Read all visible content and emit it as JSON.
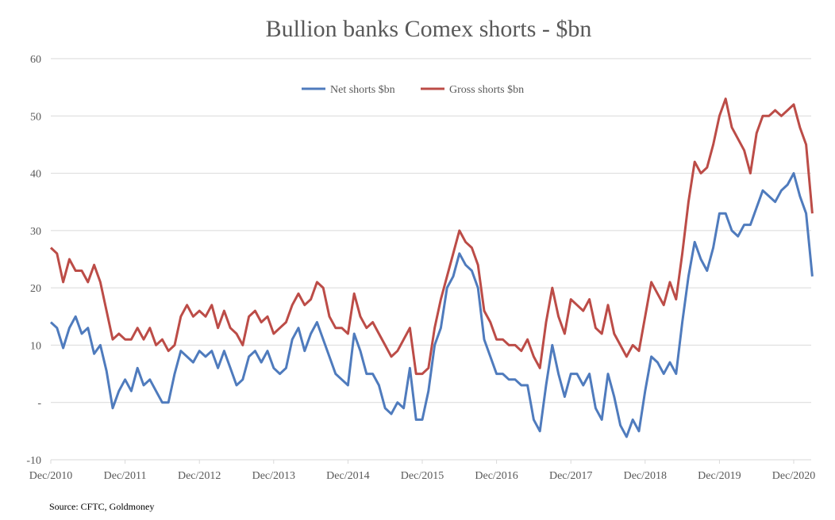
{
  "chart_data": {
    "type": "line",
    "title": "Bullion banks Comex shorts - $bn",
    "xlabel": "",
    "ylabel": "",
    "ylim": [
      -10,
      60
    ],
    "yticks": [
      -10,
      0,
      10,
      20,
      30,
      40,
      50,
      60
    ],
    "ytick_labels": [
      "-10",
      "-",
      "10",
      "20",
      "30",
      "40",
      "50",
      "60"
    ],
    "xtick_labels": [
      "Dec/2010",
      "Dec/2011",
      "Dec/2012",
      "Dec/2013",
      "Dec/2014",
      "Dec/2015",
      "Dec/2016",
      "Dec/2017",
      "Dec/2018",
      "Dec/2019",
      "Dec/2020"
    ],
    "grid": "horizontal",
    "legend_placement": "top-center",
    "source": "Source: CFTC, Goldmoney",
    "start_month": "2010-12",
    "series": [
      {
        "name": "Net shorts $bn",
        "color": "#4f7bbd",
        "values": [
          14,
          13,
          9.5,
          13,
          15,
          12,
          13,
          8.5,
          10,
          5.5,
          -1,
          2,
          4,
          2,
          6,
          3,
          4,
          2,
          0,
          0,
          5,
          9,
          8,
          7,
          9,
          8,
          9,
          6,
          9,
          6,
          3,
          4,
          8,
          9,
          7,
          9,
          6,
          5,
          6,
          11,
          13,
          9,
          12,
          14,
          11,
          8,
          5,
          4,
          3,
          12,
          9,
          5,
          5,
          3,
          -1,
          -2,
          0,
          -1,
          6,
          -3,
          -3,
          2,
          10,
          13,
          20,
          22,
          26,
          24,
          23,
          20,
          11,
          8,
          5,
          5,
          4,
          4,
          3,
          3,
          -3,
          -5,
          3,
          10,
          5,
          1,
          5,
          5,
          3,
          5,
          -1,
          -3,
          5,
          1,
          -4,
          -6,
          -3,
          -5,
          2,
          8,
          7,
          5,
          7,
          5,
          14,
          22,
          28,
          25,
          23,
          27,
          33,
          33,
          30,
          29,
          31,
          31,
          34,
          37,
          36,
          35,
          37,
          38,
          40,
          36,
          33,
          22
        ]
      },
      {
        "name": "Gross shorts $bn",
        "color": "#bc4c47",
        "values": [
          27,
          26,
          21,
          25,
          23,
          23,
          21,
          24,
          21,
          16,
          11,
          12,
          11,
          11,
          13,
          11,
          13,
          10,
          11,
          9,
          10,
          15,
          17,
          15,
          16,
          15,
          17,
          13,
          16,
          13,
          12,
          10,
          15,
          16,
          14,
          15,
          12,
          13,
          14,
          17,
          19,
          17,
          18,
          21,
          20,
          15,
          13,
          13,
          12,
          19,
          15,
          13,
          14,
          12,
          10,
          8,
          9,
          11,
          13,
          5,
          5,
          6,
          13,
          18,
          22,
          26,
          30,
          28,
          27,
          24,
          16,
          14,
          11,
          11,
          10,
          10,
          9,
          11,
          8,
          6,
          14,
          20,
          15,
          12,
          18,
          17,
          16,
          18,
          13,
          12,
          17,
          12,
          10,
          8,
          10,
          9,
          15,
          21,
          19,
          17,
          21,
          18,
          26,
          35,
          42,
          40,
          41,
          45,
          50,
          53,
          48,
          46,
          44,
          40,
          47,
          50,
          50,
          51,
          50,
          51,
          52,
          48,
          45,
          33
        ]
      }
    ]
  }
}
